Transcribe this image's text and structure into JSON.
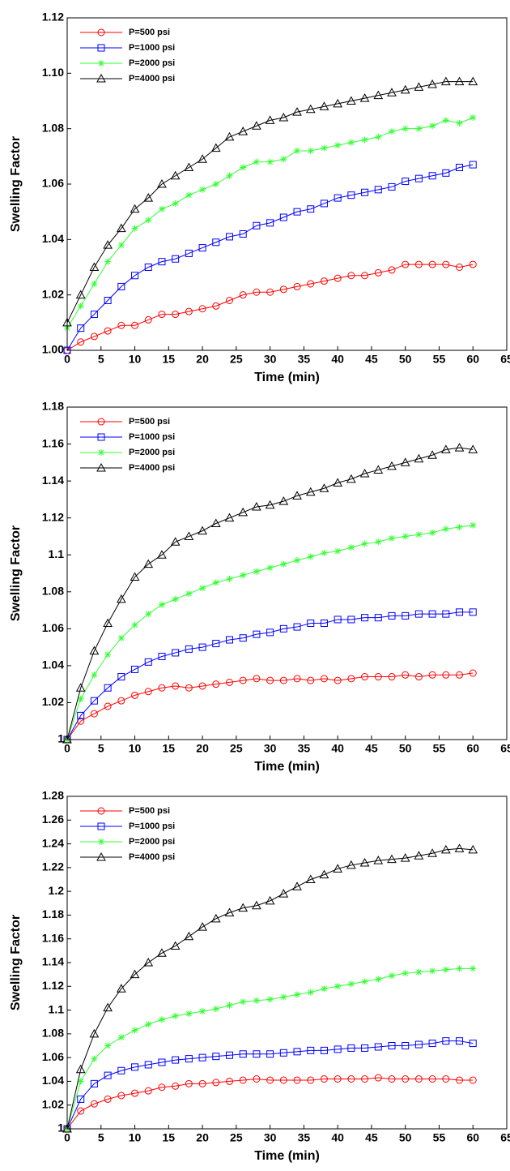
{
  "chart_data": [
    {
      "type": "line",
      "xlabel": "Time (min)",
      "ylabel": "Swelling Factor",
      "x": [
        0,
        2,
        4,
        6,
        8,
        10,
        12,
        14,
        16,
        18,
        20,
        22,
        24,
        26,
        28,
        30,
        32,
        34,
        36,
        38,
        40,
        42,
        44,
        46,
        48,
        50,
        52,
        54,
        56,
        58,
        60
      ],
      "xlim": [
        0,
        65
      ],
      "xticks": [
        0,
        5,
        10,
        15,
        20,
        25,
        30,
        35,
        40,
        45,
        50,
        55,
        60,
        65
      ],
      "ylim": [
        1,
        1.12
      ],
      "yticks": [
        {
          "value": 1,
          "label": "1.00"
        },
        1.02,
        1.04,
        1.06,
        1.08,
        {
          "value": 1.1,
          "label": "1.10"
        },
        1.12
      ],
      "legend": "upper left",
      "series": [
        {
          "name": "P=500 psi",
          "color": "#ff0000",
          "marker": "circle",
          "values": [
            1.0,
            1.003,
            1.005,
            1.007,
            1.009,
            1.009,
            1.011,
            1.013,
            1.013,
            1.014,
            1.015,
            1.016,
            1.018,
            1.02,
            1.021,
            1.021,
            1.022,
            1.023,
            1.024,
            1.025,
            1.026,
            1.027,
            1.027,
            1.028,
            1.029,
            1.031,
            1.031,
            1.031,
            1.031,
            1.03,
            1.031
          ]
        },
        {
          "name": "P=1000 psi",
          "color": "#0000ff",
          "marker": "square",
          "values": [
            1.0,
            1.008,
            1.013,
            1.018,
            1.023,
            1.027,
            1.03,
            1.032,
            1.033,
            1.035,
            1.037,
            1.039,
            1.041,
            1.042,
            1.045,
            1.046,
            1.048,
            1.05,
            1.051,
            1.053,
            1.055,
            1.056,
            1.057,
            1.058,
            1.059,
            1.061,
            1.062,
            1.063,
            1.064,
            1.066,
            1.067
          ]
        },
        {
          "name": "P=2000 psi",
          "color": "#33ff33",
          "marker": "star",
          "values": [
            1.008,
            1.016,
            1.024,
            1.032,
            1.038,
            1.044,
            1.047,
            1.051,
            1.053,
            1.056,
            1.058,
            1.06,
            1.063,
            1.066,
            1.068,
            1.068,
            1.069,
            1.072,
            1.072,
            1.073,
            1.074,
            1.075,
            1.076,
            1.077,
            1.079,
            1.08,
            1.08,
            1.081,
            1.083,
            1.082,
            1.084
          ]
        },
        {
          "name": "P=4000 psi",
          "color": "#000000",
          "marker": "triangle",
          "values": [
            1.01,
            1.02,
            1.03,
            1.038,
            1.044,
            1.051,
            1.055,
            1.06,
            1.063,
            1.066,
            1.069,
            1.073,
            1.077,
            1.079,
            1.081,
            1.083,
            1.084,
            1.086,
            1.087,
            1.088,
            1.089,
            1.09,
            1.091,
            1.092,
            1.093,
            1.094,
            1.095,
            1.096,
            1.097,
            1.097,
            1.097
          ]
        }
      ]
    },
    {
      "type": "line",
      "xlabel": "Time (min)",
      "ylabel": "Swelling Factor",
      "x": [
        0,
        2,
        4,
        6,
        8,
        10,
        12,
        14,
        16,
        18,
        20,
        22,
        24,
        26,
        28,
        30,
        32,
        34,
        36,
        38,
        40,
        42,
        44,
        46,
        48,
        50,
        52,
        54,
        56,
        58,
        60
      ],
      "xlim": [
        0,
        65
      ],
      "xticks": [
        0,
        5,
        10,
        15,
        20,
        25,
        30,
        35,
        40,
        45,
        50,
        55,
        60,
        65
      ],
      "ylim": [
        1,
        1.18
      ],
      "yticks": [
        1,
        1.02,
        1.04,
        1.06,
        1.08,
        1.1,
        1.12,
        1.14,
        1.16,
        1.18
      ],
      "legend": "upper left",
      "series": [
        {
          "name": "P=500 psi",
          "color": "#ff0000",
          "marker": "circle",
          "values": [
            1.0,
            1.01,
            1.014,
            1.018,
            1.021,
            1.024,
            1.026,
            1.028,
            1.029,
            1.028,
            1.029,
            1.03,
            1.031,
            1.032,
            1.033,
            1.032,
            1.032,
            1.033,
            1.032,
            1.033,
            1.032,
            1.033,
            1.034,
            1.034,
            1.034,
            1.035,
            1.034,
            1.035,
            1.035,
            1.035,
            1.036
          ]
        },
        {
          "name": "P=1000 psi",
          "color": "#0000ff",
          "marker": "square",
          "values": [
            1.0,
            1.013,
            1.021,
            1.028,
            1.034,
            1.038,
            1.042,
            1.045,
            1.047,
            1.049,
            1.05,
            1.052,
            1.054,
            1.055,
            1.057,
            1.058,
            1.06,
            1.061,
            1.063,
            1.063,
            1.065,
            1.065,
            1.066,
            1.066,
            1.067,
            1.067,
            1.068,
            1.068,
            1.068,
            1.069,
            1.069
          ]
        },
        {
          "name": "P=2000 psi",
          "color": "#33ff33",
          "marker": "star",
          "values": [
            1.0,
            1.022,
            1.035,
            1.046,
            1.055,
            1.062,
            1.068,
            1.073,
            1.076,
            1.079,
            1.082,
            1.085,
            1.087,
            1.089,
            1.091,
            1.093,
            1.095,
            1.097,
            1.099,
            1.101,
            1.102,
            1.104,
            1.106,
            1.107,
            1.109,
            1.11,
            1.111,
            1.112,
            1.114,
            1.115,
            1.116
          ]
        },
        {
          "name": "P=4000 psi",
          "color": "#000000",
          "marker": "triangle",
          "values": [
            1.0,
            1.028,
            1.048,
            1.063,
            1.076,
            1.088,
            1.095,
            1.1,
            1.107,
            1.11,
            1.113,
            1.117,
            1.12,
            1.123,
            1.126,
            1.127,
            1.129,
            1.132,
            1.134,
            1.136,
            1.139,
            1.141,
            1.144,
            1.146,
            1.148,
            1.15,
            1.152,
            1.154,
            1.157,
            1.158,
            1.157
          ]
        }
      ]
    },
    {
      "type": "line",
      "xlabel": "Time (min)",
      "ylabel": "Swelling Factor",
      "x": [
        0,
        2,
        4,
        6,
        8,
        10,
        12,
        14,
        16,
        18,
        20,
        22,
        24,
        26,
        28,
        30,
        32,
        34,
        36,
        38,
        40,
        42,
        44,
        46,
        48,
        50,
        52,
        54,
        56,
        58,
        60
      ],
      "xlim": [
        0,
        65
      ],
      "xticks": [
        0,
        5,
        10,
        15,
        20,
        25,
        30,
        35,
        40,
        45,
        50,
        55,
        60,
        65
      ],
      "ylim": [
        1,
        1.28
      ],
      "yticks": [
        1,
        1.02,
        1.04,
        1.06,
        1.08,
        1.1,
        1.12,
        1.14,
        1.16,
        1.18,
        1.2,
        1.22,
        1.24,
        1.26,
        1.28
      ],
      "legend": "upper left",
      "series": [
        {
          "name": "P=500 psi",
          "color": "#ff0000",
          "marker": "circle",
          "values": [
            1.0,
            1.015,
            1.021,
            1.025,
            1.028,
            1.03,
            1.032,
            1.035,
            1.036,
            1.038,
            1.038,
            1.039,
            1.04,
            1.041,
            1.042,
            1.041,
            1.041,
            1.041,
            1.041,
            1.042,
            1.042,
            1.042,
            1.042,
            1.043,
            1.042,
            1.042,
            1.042,
            1.042,
            1.042,
            1.041,
            1.041
          ]
        },
        {
          "name": "P=1000 psi",
          "color": "#0000ff",
          "marker": "square",
          "values": [
            1.0,
            1.025,
            1.038,
            1.045,
            1.049,
            1.052,
            1.054,
            1.056,
            1.058,
            1.059,
            1.06,
            1.061,
            1.062,
            1.063,
            1.063,
            1.063,
            1.064,
            1.065,
            1.066,
            1.066,
            1.067,
            1.068,
            1.068,
            1.069,
            1.07,
            1.07,
            1.071,
            1.072,
            1.074,
            1.074,
            1.072
          ]
        },
        {
          "name": "P=2000 psi",
          "color": "#33ff33",
          "marker": "star",
          "values": [
            1.0,
            1.04,
            1.059,
            1.07,
            1.077,
            1.083,
            1.088,
            1.092,
            1.095,
            1.097,
            1.099,
            1.101,
            1.104,
            1.107,
            1.108,
            1.109,
            1.111,
            1.113,
            1.115,
            1.118,
            1.12,
            1.122,
            1.124,
            1.126,
            1.129,
            1.131,
            1.132,
            1.133,
            1.134,
            1.135,
            1.135
          ]
        },
        {
          "name": "P=4000 psi",
          "color": "#000000",
          "marker": "triangle",
          "values": [
            1.0,
            1.05,
            1.08,
            1.102,
            1.118,
            1.13,
            1.14,
            1.148,
            1.154,
            1.162,
            1.17,
            1.177,
            1.182,
            1.186,
            1.188,
            1.192,
            1.198,
            1.204,
            1.21,
            1.214,
            1.219,
            1.222,
            1.224,
            1.226,
            1.227,
            1.228,
            1.23,
            1.232,
            1.235,
            1.236,
            1.235
          ]
        }
      ]
    }
  ]
}
